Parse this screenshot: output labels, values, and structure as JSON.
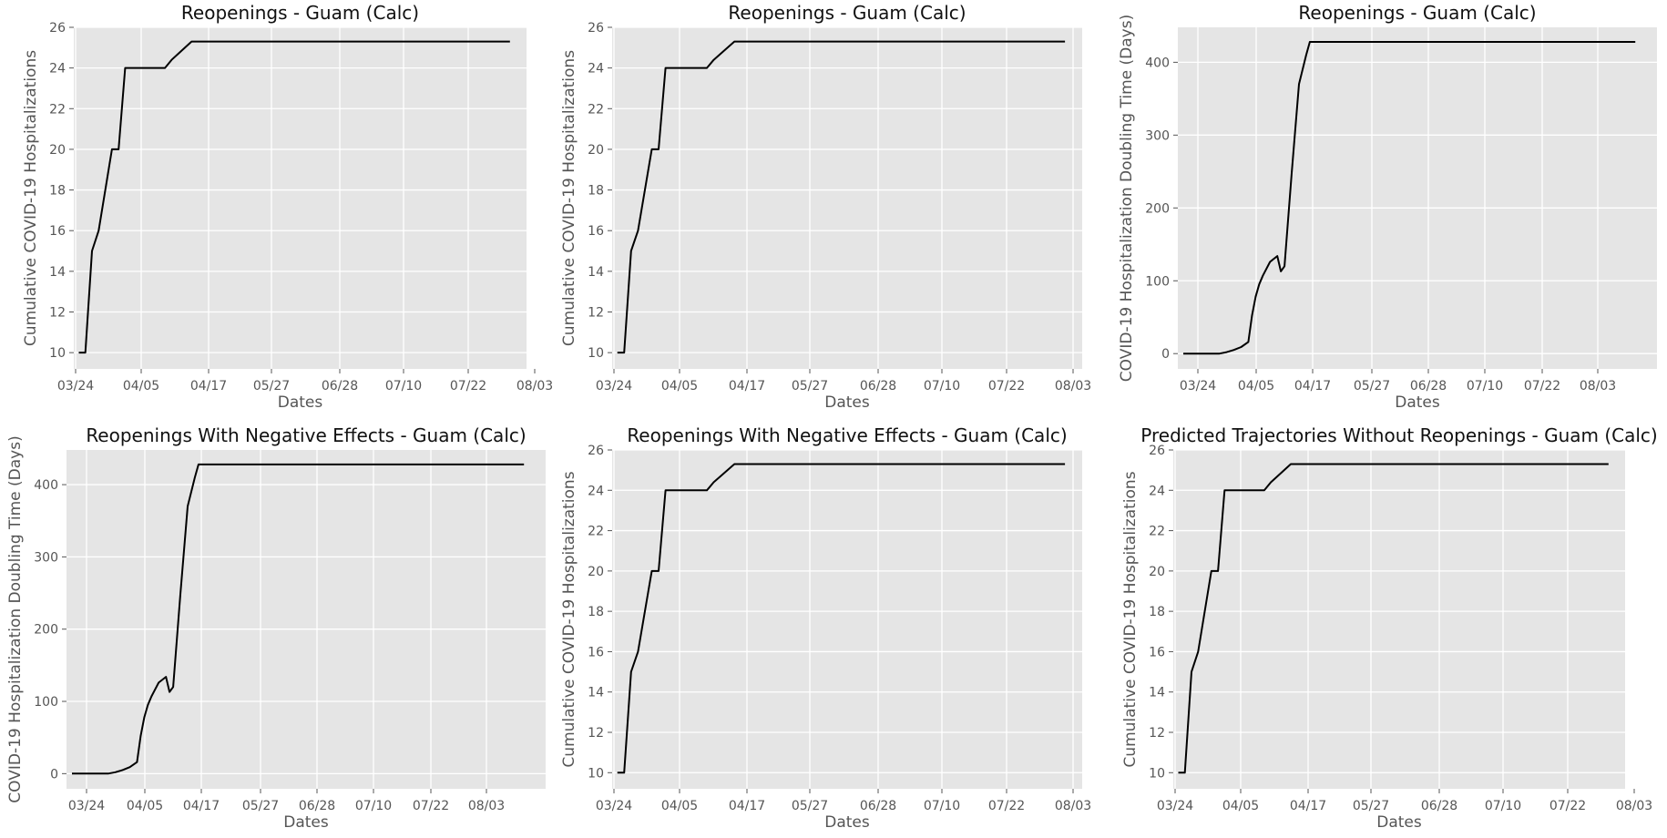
{
  "colors": {
    "plot_bg": "#e5e5e5",
    "grid": "#ffffff",
    "line": "#000000",
    "text": "#555555"
  },
  "chart_data": [
    {
      "type": "line",
      "title": "Reopenings - Guam (Calc)",
      "xlabel": "Dates",
      "ylabel": "Cumulative COVID-19 Hospitalizations",
      "xticks": [
        "03/24",
        "04/05",
        "04/17",
        "05/27",
        "06/28",
        "07/10",
        "07/22",
        "08/03"
      ],
      "xlim": [
        -1.5,
        135
      ],
      "yticks": [
        10,
        12,
        14,
        16,
        18,
        20,
        22,
        24,
        26
      ],
      "ylim": [
        9.2,
        26
      ],
      "grid": true,
      "series": [
        {
          "name": "hospitalizations",
          "x": [
            0,
            2,
            4,
            6,
            10,
            12,
            14,
            18,
            22,
            26,
            28,
            30,
            34,
            38,
            130
          ],
          "y": [
            10,
            10,
            15,
            16,
            20,
            20,
            24,
            24,
            24,
            24,
            24.4,
            24.7,
            25.3,
            25.3,
            25.3
          ]
        }
      ]
    },
    {
      "type": "line",
      "title": "Reopenings - Guam (Calc)",
      "xlabel": "Dates",
      "ylabel": "Cumulative COVID-19 Hospitalizations",
      "xticks": [
        "03/24",
        "04/05",
        "04/17",
        "05/27",
        "06/28",
        "07/10",
        "07/22",
        "08/03"
      ],
      "xlim": [
        -1.5,
        135
      ],
      "yticks": [
        10,
        12,
        14,
        16,
        18,
        20,
        22,
        24,
        26
      ],
      "ylim": [
        9.2,
        26
      ],
      "grid": true,
      "series": [
        {
          "name": "hospitalizations",
          "x": [
            0,
            2,
            4,
            6,
            10,
            12,
            14,
            18,
            22,
            26,
            28,
            30,
            34,
            38,
            130
          ],
          "y": [
            10,
            10,
            15,
            16,
            20,
            20,
            24,
            24,
            24,
            24,
            24.4,
            24.7,
            25.3,
            25.3,
            25.3
          ]
        }
      ]
    },
    {
      "type": "line",
      "title": "Reopenings - Guam (Calc)",
      "xlabel": "Dates",
      "ylabel": "COVID-19 Hospitalization Doubling Time (Days)",
      "xticks": [
        "03/24",
        "04/05",
        "04/17",
        "05/27",
        "06/28",
        "07/10",
        "07/22",
        "08/03"
      ],
      "xlim": [
        -1.5,
        131
      ],
      "yticks": [
        0,
        100,
        200,
        300,
        400
      ],
      "ylim": [
        -21,
        448
      ],
      "grid": true,
      "series": [
        {
          "name": "doubling_time",
          "x": [
            0,
            5,
            10,
            12,
            14,
            16,
            18,
            19,
            20,
            21,
            22,
            24,
            26,
            27,
            28,
            30,
            32,
            34,
            35,
            125
          ],
          "y": [
            0,
            0,
            0,
            2,
            5,
            9,
            16,
            52,
            78,
            95,
            107,
            126,
            134,
            113,
            120,
            248,
            370,
            410,
            428,
            428
          ]
        }
      ]
    },
    {
      "type": "line",
      "title": "Reopenings With Negative Effects - Guam (Calc)",
      "xlabel": "Dates",
      "ylabel": "COVID-19 Hospitalization Doubling Time (Days)",
      "xticks": [
        "03/24",
        "04/05",
        "04/17",
        "05/27",
        "06/28",
        "07/10",
        "07/22",
        "08/03"
      ],
      "xlim": [
        -1.5,
        131
      ],
      "yticks": [
        0,
        100,
        200,
        300,
        400
      ],
      "ylim": [
        -21,
        448
      ],
      "grid": true,
      "series": [
        {
          "name": "doubling_time",
          "x": [
            0,
            5,
            10,
            12,
            14,
            16,
            18,
            19,
            20,
            21,
            22,
            24,
            26,
            27,
            28,
            30,
            32,
            34,
            35,
            125
          ],
          "y": [
            0,
            0,
            0,
            2,
            5,
            9,
            16,
            52,
            78,
            95,
            107,
            126,
            134,
            113,
            120,
            248,
            370,
            410,
            428,
            428
          ]
        }
      ]
    },
    {
      "type": "line",
      "title": "Reopenings With Negative Effects - Guam (Calc)",
      "xlabel": "Dates",
      "ylabel": "Cumulative COVID-19 Hospitalizations",
      "xticks": [
        "03/24",
        "04/05",
        "04/17",
        "05/27",
        "06/28",
        "07/10",
        "07/22",
        "08/03"
      ],
      "xlim": [
        -1.5,
        135
      ],
      "yticks": [
        10,
        12,
        14,
        16,
        18,
        20,
        22,
        24,
        26
      ],
      "ylim": [
        9.2,
        26
      ],
      "grid": true,
      "series": [
        {
          "name": "hospitalizations",
          "x": [
            0,
            2,
            4,
            6,
            10,
            12,
            14,
            18,
            22,
            26,
            28,
            30,
            34,
            38,
            130
          ],
          "y": [
            10,
            10,
            15,
            16,
            20,
            20,
            24,
            24,
            24,
            24,
            24.4,
            24.7,
            25.3,
            25.3,
            25.3
          ]
        }
      ]
    },
    {
      "type": "line",
      "title": "Predicted Trajectories Without Reopenings - Guam (Calc)",
      "xlabel": "Dates",
      "ylabel": "Cumulative COVID-19 Hospitalizations",
      "xticks": [
        "03/24",
        "04/05",
        "04/17",
        "05/27",
        "06/28",
        "07/10",
        "07/22",
        "08/03"
      ],
      "xlim": [
        -1.5,
        135
      ],
      "yticks": [
        10,
        12,
        14,
        16,
        18,
        20,
        22,
        24,
        26
      ],
      "ylim": [
        9.2,
        26
      ],
      "grid": true,
      "series": [
        {
          "name": "hospitalizations",
          "x": [
            0,
            2,
            4,
            6,
            10,
            12,
            14,
            18,
            22,
            26,
            28,
            30,
            34,
            38,
            130
          ],
          "y": [
            10,
            10,
            15,
            16,
            20,
            20,
            24,
            24,
            24,
            24,
            24.4,
            24.7,
            25.3,
            25.3,
            25.3
          ]
        }
      ]
    }
  ]
}
